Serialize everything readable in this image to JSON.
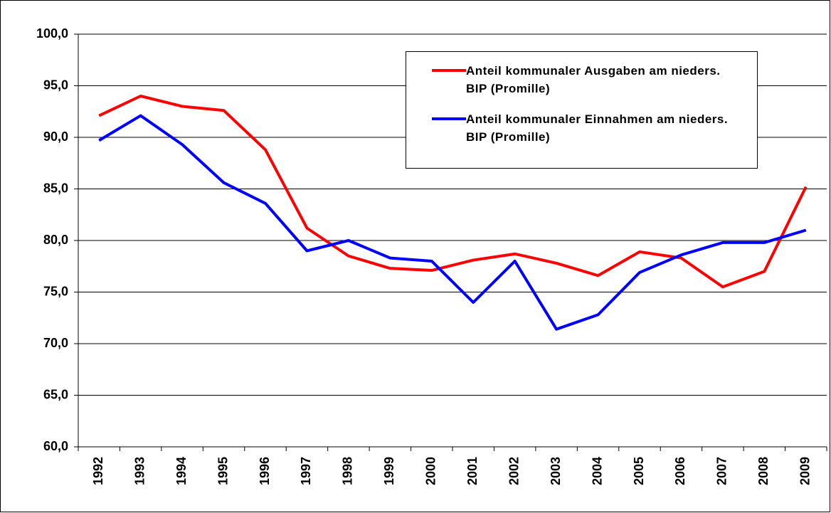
{
  "chart_data": {
    "type": "line",
    "categories": [
      "1992",
      "1993",
      "1994",
      "1995",
      "1996",
      "1997",
      "1998",
      "1999",
      "2000",
      "2001",
      "2002",
      "2003",
      "2004",
      "2005",
      "2006",
      "2007",
      "2008",
      "2009"
    ],
    "series": [
      {
        "name": "Anteil kommunaler Ausgaben am nieders. BIP (Promille)",
        "color": "#ff0000",
        "values": [
          92.1,
          94.0,
          93.0,
          92.6,
          88.8,
          81.2,
          78.5,
          77.3,
          77.1,
          78.1,
          78.7,
          77.8,
          76.6,
          78.9,
          78.3,
          75.5,
          77.0,
          85.2
        ]
      },
      {
        "name": "Anteil kommunaler Einnahmen am nieders. BIP (Promille)",
        "color": "#0000ff",
        "values": [
          89.7,
          92.1,
          89.3,
          85.6,
          83.6,
          79.0,
          80.0,
          78.3,
          78.0,
          74.0,
          78.0,
          71.4,
          72.8,
          76.9,
          78.6,
          79.8,
          79.8,
          81.0
        ]
      }
    ],
    "ylim": [
      60,
      100
    ],
    "yticks": [
      {
        "value": 60,
        "label": "60,0"
      },
      {
        "value": 65,
        "label": "65,0"
      },
      {
        "value": 70,
        "label": "70,0"
      },
      {
        "value": 75,
        "label": "75,0"
      },
      {
        "value": 80,
        "label": "80,0"
      },
      {
        "value": 85,
        "label": "85,0"
      },
      {
        "value": 90,
        "label": "90,0"
      },
      {
        "value": 95,
        "label": "95,0"
      },
      {
        "value": 100,
        "label": "100,0"
      }
    ],
    "grid": true,
    "legend": "upper right"
  }
}
